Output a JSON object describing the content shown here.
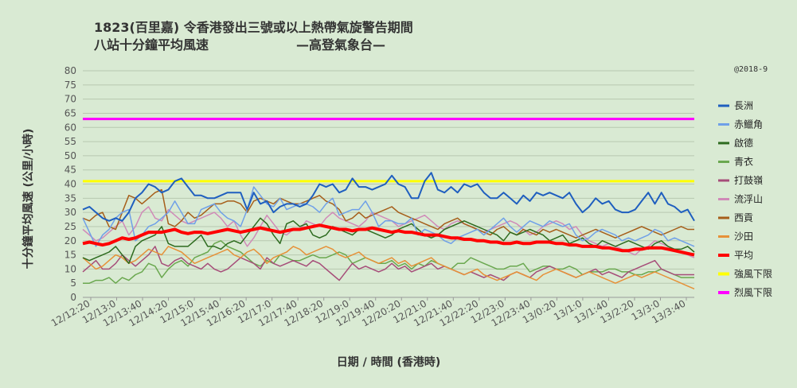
{
  "chart_data": {
    "type": "line",
    "title_line1": "1823(百里嘉) 令香港發出三號或以上熱帶氣旋警告期間",
    "title_line2": "八站十分鐘平均風速",
    "title_source": "—高登氣象台—",
    "credit": "@2018-9",
    "xlabel": "日期 / 時間 (香港時)",
    "ylabel": "十分鐘平均風速 (公里/小時)",
    "ylim": [
      0,
      80
    ],
    "yticks": [
      0,
      5,
      10,
      15,
      20,
      25,
      30,
      35,
      40,
      45,
      50,
      55,
      60,
      65,
      70,
      75,
      80
    ],
    "grid": true,
    "legend_position": "right",
    "x_tick_labels": [
      "12/12:20",
      "12/13:0",
      "12/13:40",
      "12/14:20",
      "12/15:0",
      "12/15:40",
      "12/16:20",
      "12/17:0",
      "12/17:40",
      "12/18:20",
      "12/19:0",
      "12/19:40",
      "12/20:20",
      "12/21:0",
      "12/21:40",
      "12/22:20",
      "12/23:0",
      "12/23:40",
      "13/0:20",
      "13/1:0",
      "13/1:40",
      "13/2:20",
      "13/3:0",
      "13/3:40"
    ],
    "series": [
      {
        "name": "長洲",
        "color": "#1f5fbf",
        "width": 2,
        "values": [
          31,
          32,
          30,
          28,
          27,
          28,
          27,
          30,
          35,
          37,
          40,
          39,
          37,
          38,
          41,
          42,
          39,
          36,
          36,
          35,
          35,
          36,
          37,
          37,
          37,
          31,
          37,
          33,
          34,
          30,
          32,
          33,
          33,
          32,
          33,
          36,
          40,
          39,
          40,
          37,
          38,
          42,
          39,
          39,
          38,
          39,
          40,
          43,
          40,
          39,
          35,
          35,
          41,
          44,
          38,
          37,
          39,
          37,
          40,
          39,
          40,
          37,
          35,
          35,
          37,
          35,
          33,
          36,
          34,
          37,
          36,
          37,
          36,
          35,
          37,
          33,
          30,
          32,
          35,
          33,
          34,
          31,
          30,
          30,
          31,
          34,
          37,
          33,
          37,
          33,
          32,
          30,
          31,
          27
        ]
      },
      {
        "name": "赤鱲角",
        "color": "#6fa0e8",
        "width": 1.5,
        "values": [
          28,
          23,
          18,
          22,
          24,
          28,
          30,
          31,
          20,
          22,
          25,
          26,
          28,
          30,
          34,
          30,
          26,
          26,
          31,
          32,
          33,
          30,
          28,
          27,
          25,
          31,
          39,
          36,
          33,
          32,
          35,
          31,
          32,
          33,
          33,
          32,
          30,
          33,
          35,
          29,
          30,
          31,
          31,
          34,
          30,
          25,
          27,
          27,
          26,
          26,
          28,
          22,
          24,
          23,
          22,
          20,
          19,
          21,
          22,
          23,
          24,
          22,
          24,
          26,
          28,
          25,
          23,
          25,
          27,
          26,
          25,
          27,
          26,
          25,
          26,
          22,
          20,
          21,
          23,
          24,
          23,
          22,
          20,
          21,
          20,
          21,
          22,
          24,
          23,
          20,
          21,
          20,
          19,
          18
        ]
      },
      {
        "name": "啟德",
        "color": "#2d6b1f",
        "width": 1.5,
        "values": [
          14,
          13,
          14,
          15,
          16,
          18,
          15,
          12,
          18,
          20,
          21,
          22,
          25,
          19,
          18,
          18,
          18,
          20,
          22,
          18,
          18,
          17,
          19,
          20,
          19,
          22,
          25,
          28,
          26,
          22,
          19,
          26,
          27,
          25,
          26,
          22,
          21,
          22,
          25,
          24,
          23,
          22,
          24,
          24,
          23,
          22,
          21,
          22,
          24,
          25,
          26,
          24,
          22,
          21,
          22,
          24,
          25,
          26,
          27,
          26,
          25,
          24,
          23,
          22,
          20,
          23,
          22,
          23,
          24,
          23,
          22,
          20,
          21,
          22,
          19,
          20,
          21,
          19,
          18,
          20,
          19,
          18,
          19,
          20,
          19,
          18,
          17,
          19,
          20,
          18,
          17,
          17,
          18,
          16
        ]
      },
      {
        "name": "青衣",
        "color": "#6aa84f",
        "width": 1.5,
        "values": [
          5,
          5,
          6,
          6,
          7,
          5,
          7,
          6,
          8,
          9,
          12,
          11,
          7,
          10,
          12,
          13,
          11,
          14,
          15,
          16,
          19,
          20,
          18,
          17,
          16,
          14,
          12,
          11,
          13,
          12,
          15,
          14,
          13,
          13,
          14,
          15,
          14,
          14,
          15,
          16,
          15,
          12,
          13,
          14,
          13,
          12,
          12,
          13,
          11,
          12,
          10,
          12,
          11,
          13,
          12,
          11,
          10,
          12,
          12,
          14,
          13,
          12,
          11,
          10,
          10,
          11,
          11,
          12,
          9,
          10,
          11,
          11,
          10,
          10,
          11,
          10,
          8,
          9,
          9,
          9,
          10,
          10,
          9,
          9,
          8,
          8,
          9,
          9,
          10,
          9,
          8,
          7,
          7,
          7
        ]
      },
      {
        "name": "打鼓嶺",
        "color": "#a64d79",
        "width": 1.5,
        "values": [
          9,
          11,
          13,
          10,
          10,
          12,
          15,
          13,
          11,
          13,
          15,
          18,
          12,
          11,
          13,
          14,
          12,
          11,
          10,
          12,
          10,
          9,
          10,
          12,
          14,
          13,
          12,
          10,
          14,
          12,
          11,
          12,
          13,
          12,
          11,
          13,
          12,
          10,
          8,
          6,
          9,
          12,
          10,
          11,
          10,
          9,
          10,
          12,
          10,
          11,
          9,
          10,
          11,
          12,
          10,
          11,
          10,
          9,
          8,
          9,
          8,
          7,
          8,
          7,
          6,
          8,
          9,
          8,
          7,
          9,
          10,
          11,
          10,
          9,
          8,
          7,
          8,
          9,
          10,
          8,
          9,
          8,
          7,
          9,
          10,
          11,
          12,
          13,
          10,
          9,
          8,
          8,
          8,
          8
        ]
      },
      {
        "name": "流浮山",
        "color": "#d08ab8",
        "width": 1.5,
        "values": [
          24,
          22,
          20,
          21,
          23,
          25,
          27,
          22,
          25,
          30,
          32,
          28,
          27,
          31,
          29,
          27,
          26,
          27,
          28,
          29,
          30,
          28,
          25,
          27,
          22,
          18,
          21,
          25,
          29,
          26,
          23,
          22,
          24,
          24,
          27,
          26,
          25,
          28,
          30,
          28,
          27,
          26,
          25,
          27,
          30,
          29,
          28,
          27,
          25,
          26,
          27,
          28,
          29,
          27,
          25,
          24,
          26,
          27,
          26,
          25,
          24,
          23,
          24,
          25,
          26,
          27,
          26,
          24,
          22,
          23,
          25,
          26,
          27,
          26,
          24,
          25,
          22,
          20,
          19,
          18,
          19,
          18,
          17,
          16,
          15,
          17,
          18,
          20,
          19,
          18,
          17,
          16,
          15,
          14
        ]
      },
      {
        "name": "西貢",
        "color": "#a65e1a",
        "width": 1.5,
        "values": [
          28,
          27,
          29,
          30,
          25,
          24,
          30,
          36,
          35,
          33,
          35,
          37,
          38,
          26,
          25,
          27,
          30,
          28,
          29,
          31,
          33,
          33,
          34,
          34,
          33,
          30,
          34,
          35,
          34,
          33,
          35,
          34,
          33,
          33,
          34,
          35,
          36,
          34,
          33,
          31,
          27,
          28,
          30,
          28,
          29,
          30,
          31,
          32,
          30,
          29,
          28,
          27,
          26,
          25,
          24,
          26,
          27,
          28,
          26,
          25,
          24,
          23,
          22,
          24,
          25,
          23,
          22,
          24,
          23,
          22,
          24,
          23,
          24,
          23,
          22,
          21,
          22,
          23,
          24,
          23,
          22,
          21,
          22,
          23,
          24,
          25,
          24,
          23,
          22,
          23,
          24,
          25,
          24,
          24
        ]
      },
      {
        "name": "沙田",
        "color": "#e69138",
        "width": 1.5,
        "values": [
          14,
          12,
          10,
          11,
          13,
          15,
          14,
          12,
          13,
          15,
          17,
          16,
          15,
          18,
          17,
          16,
          14,
          12,
          13,
          14,
          15,
          16,
          17,
          15,
          14,
          16,
          17,
          15,
          12,
          14,
          15,
          16,
          18,
          17,
          15,
          16,
          17,
          18,
          17,
          15,
          14,
          15,
          16,
          14,
          13,
          12,
          13,
          14,
          12,
          13,
          11,
          12,
          13,
          14,
          12,
          11,
          10,
          9,
          8,
          9,
          10,
          8,
          7,
          6,
          7,
          8,
          9,
          8,
          7,
          6,
          8,
          9,
          10,
          9,
          8,
          7,
          8,
          9,
          8,
          7,
          6,
          5,
          6,
          7,
          8,
          7,
          8,
          9,
          8,
          7,
          6,
          5,
          4,
          3
        ]
      },
      {
        "name": "平均",
        "color": "#ff0000",
        "width": 4,
        "values": [
          19,
          19.5,
          19,
          18.5,
          19,
          20,
          21,
          20.5,
          21,
          22,
          23,
          23,
          23,
          23.5,
          24,
          23,
          22.5,
          23,
          23,
          22.5,
          23,
          23.5,
          24,
          23.5,
          23,
          23.5,
          24,
          24.5,
          24,
          23.5,
          23,
          23.5,
          24,
          24,
          24.5,
          25,
          25.5,
          25,
          24.5,
          24,
          24,
          23.5,
          24,
          24,
          24.5,
          24,
          23.5,
          23,
          23.5,
          23,
          23,
          22.5,
          22,
          22,
          22,
          21.5,
          21,
          21,
          20.5,
          20.5,
          20,
          20,
          19.5,
          19.5,
          19,
          19,
          19.5,
          19,
          19,
          19.5,
          19.5,
          19.5,
          19,
          19,
          18.5,
          18.5,
          18,
          18,
          18,
          17.5,
          17.5,
          17,
          16.5,
          16.5,
          17,
          17,
          17.5,
          17.5,
          17.5,
          17,
          16.5,
          16,
          15.5,
          15
        ]
      },
      {
        "name": "強風下限",
        "color": "#ffff00",
        "width": 3,
        "values": [
          41,
          41
        ]
      },
      {
        "name": "烈風下限",
        "color": "#ff00ff",
        "width": 3,
        "values": [
          63,
          63
        ]
      }
    ]
  }
}
